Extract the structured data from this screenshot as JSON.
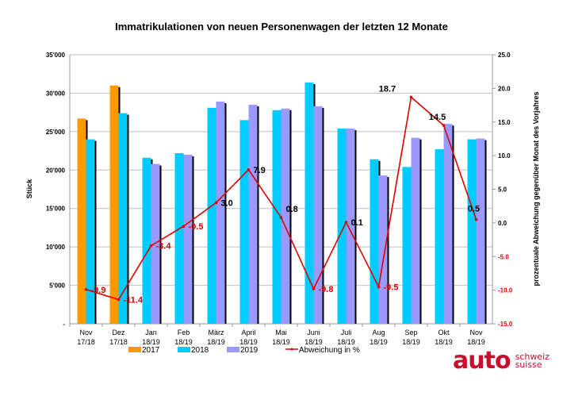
{
  "chart_data": {
    "type": "bar",
    "title": "Immatrikulationen von neuen Personenwagen der letzten 12 Monate",
    "ylabel": "Stück",
    "y2label": "prozentuale Abweichung gegenüber Monat des Vorjahres",
    "ylim": [
      0,
      35000
    ],
    "y2lim": [
      -15,
      25
    ],
    "yticks": [
      0,
      5000,
      10000,
      15000,
      20000,
      25000,
      30000,
      35000
    ],
    "yticklabels": [
      "-",
      "5'000",
      "10'000",
      "15'000",
      "20'000",
      "25'000",
      "30'000",
      "35'000"
    ],
    "y2ticks": [
      -15,
      -10,
      -5,
      0,
      5,
      10,
      15,
      20,
      25
    ],
    "y2ticklabels": [
      "-15.0",
      "-10.0",
      "-5.0",
      "0.0",
      "5.0",
      "10.0",
      "15.0",
      "20.0",
      "25.0"
    ],
    "grid": true,
    "legend_position": "bottom",
    "categories": [
      [
        "Nov",
        "17/18"
      ],
      [
        "Dez",
        "17/18"
      ],
      [
        "Jan",
        "18/19"
      ],
      [
        "Feb",
        "18/19"
      ],
      [
        "März",
        "18/19"
      ],
      [
        "April",
        "18/19"
      ],
      [
        "Mai",
        "18/19"
      ],
      [
        "Juni",
        "18/19"
      ],
      [
        "Juli",
        "18/19"
      ],
      [
        "Aug",
        "18/19"
      ],
      [
        "Sep",
        "18/19"
      ],
      [
        "Okt",
        "18/19"
      ],
      [
        "Nov",
        "18/19"
      ]
    ],
    "series": [
      {
        "name": "2017",
        "color": "#ff9900",
        "values": [
          26700,
          31000,
          null,
          null,
          null,
          null,
          null,
          null,
          null,
          null,
          null,
          null,
          null
        ]
      },
      {
        "name": "2018",
        "color": "#00ccff",
        "values": [
          24000,
          27400,
          21600,
          22200,
          28100,
          26500,
          27800,
          31400,
          25400,
          21400,
          20400,
          22700,
          24000
        ]
      },
      {
        "name": "2019",
        "color": "#9999ff",
        "values": [
          null,
          null,
          20800,
          22000,
          28900,
          28500,
          28000,
          28300,
          25400,
          19300,
          24200,
          26000,
          24100
        ]
      }
    ],
    "line": {
      "name": "Abweichung in %",
      "color": "#e00000",
      "axis": "right",
      "values": [
        -9.9,
        -11.4,
        -3.4,
        -0.5,
        3.0,
        7.9,
        0.8,
        -9.8,
        0.1,
        -9.5,
        18.7,
        14.5,
        0.5
      ],
      "labels": [
        "-9.9",
        "-11.4",
        "-3.4",
        "-0.5",
        "3.0",
        "7.9",
        "0.8",
        "-9.8",
        "0.1",
        "-9.5",
        "18.7",
        "14.5",
        "0.5"
      ]
    }
  },
  "logo": {
    "main": "auto",
    "line1": "schweiz",
    "line2": "suisse",
    "color": "#c8102e"
  }
}
